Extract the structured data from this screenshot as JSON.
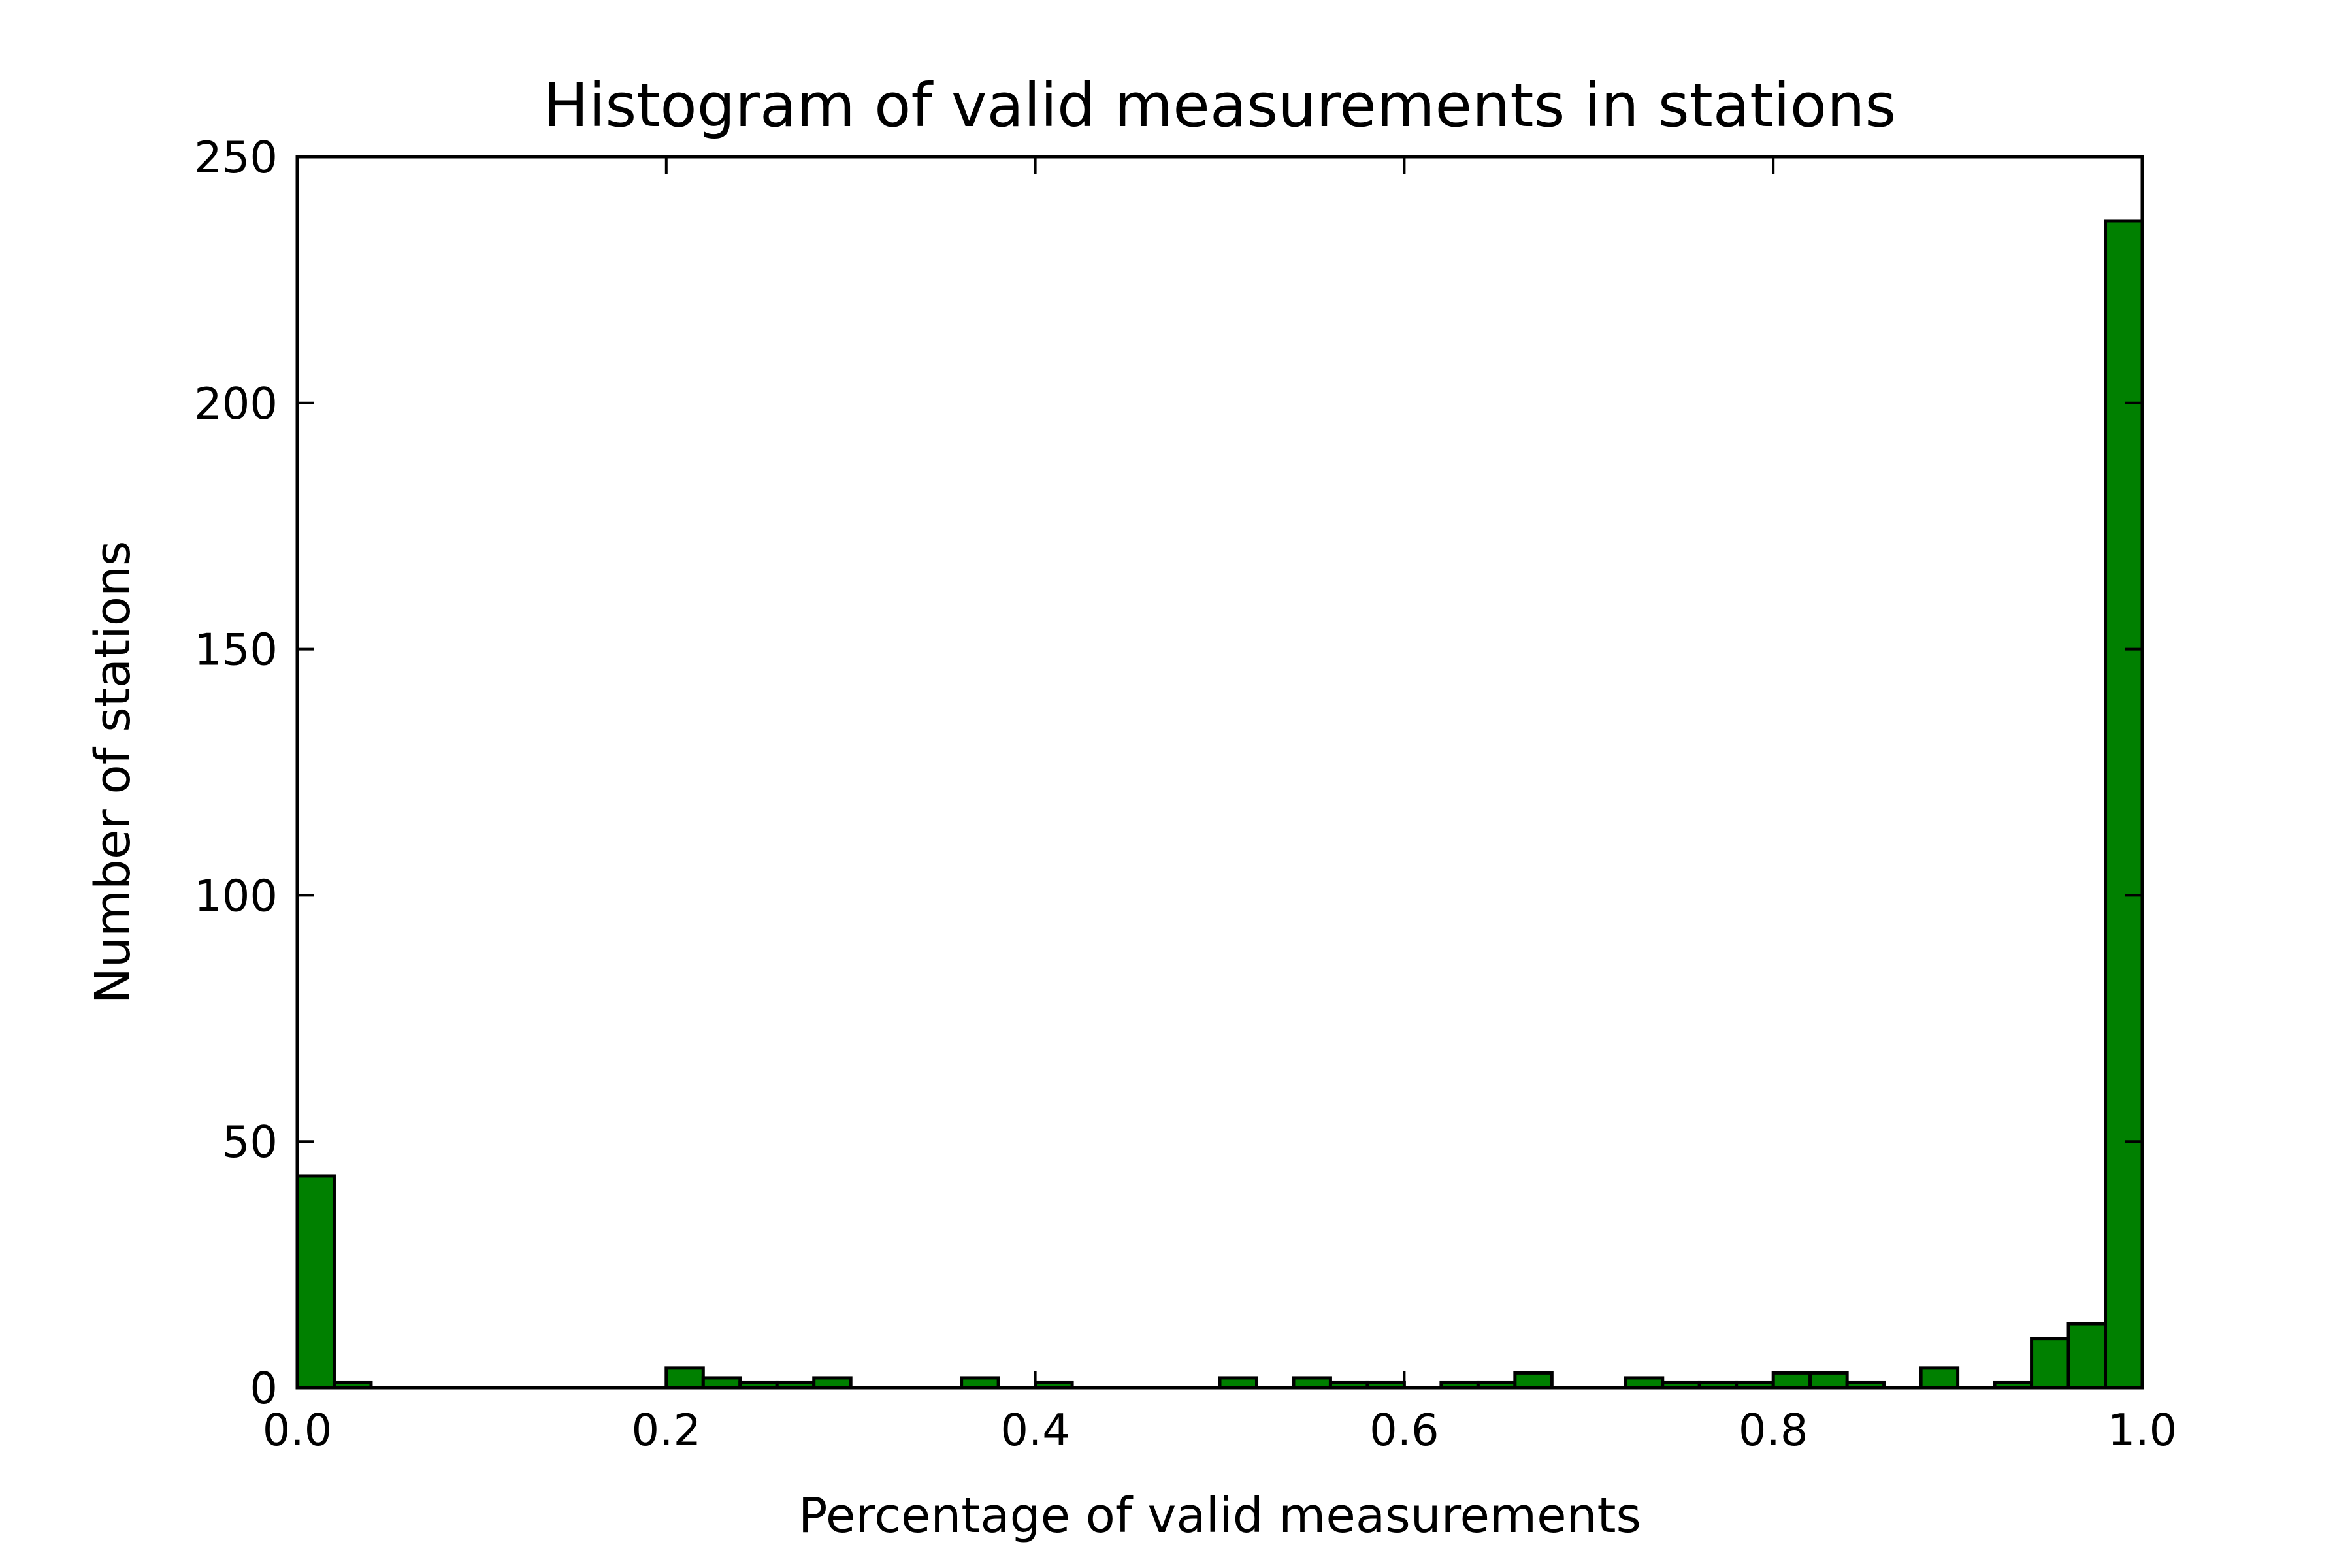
{
  "chart_data": {
    "type": "bar",
    "title": "Histogram of valid measurements in stations",
    "xlabel": "Percentage of valid measurements",
    "ylabel": "Number of stations",
    "xlim": [
      0.0,
      1.0
    ],
    "ylim": [
      0,
      250
    ],
    "x_ticks": [
      "0.0",
      "0.2",
      "0.4",
      "0.6",
      "0.8",
      "1.0"
    ],
    "y_ticks": [
      "0",
      "50",
      "100",
      "150",
      "200",
      "250"
    ],
    "bin_width": 0.02,
    "bin_starts": [
      0.0,
      0.02,
      0.04,
      0.06,
      0.08,
      0.1,
      0.12,
      0.14,
      0.16,
      0.18,
      0.2,
      0.22,
      0.24,
      0.26,
      0.28,
      0.3,
      0.32,
      0.34,
      0.36,
      0.38,
      0.4,
      0.42,
      0.44,
      0.46,
      0.48,
      0.5,
      0.52,
      0.54,
      0.56,
      0.58,
      0.6,
      0.62,
      0.64,
      0.66,
      0.68,
      0.7,
      0.72,
      0.74,
      0.76,
      0.78,
      0.8,
      0.82,
      0.84,
      0.86,
      0.88,
      0.9,
      0.92,
      0.94,
      0.96,
      0.98
    ],
    "values": [
      43,
      1,
      0,
      0,
      0,
      0,
      0,
      0,
      0,
      0,
      4,
      2,
      1,
      1,
      2,
      0,
      0,
      0,
      2,
      0,
      1,
      0,
      0,
      0,
      0,
      2,
      0,
      2,
      1,
      1,
      0,
      1,
      1,
      3,
      0,
      0,
      2,
      1,
      1,
      1,
      3,
      3,
      1,
      0,
      4,
      0,
      1,
      10,
      13,
      237
    ],
    "grid": false,
    "colors": {
      "bar_fill": "#008000",
      "bar_edge": "#000000",
      "axes": "#000000",
      "background": "#ffffff"
    }
  }
}
